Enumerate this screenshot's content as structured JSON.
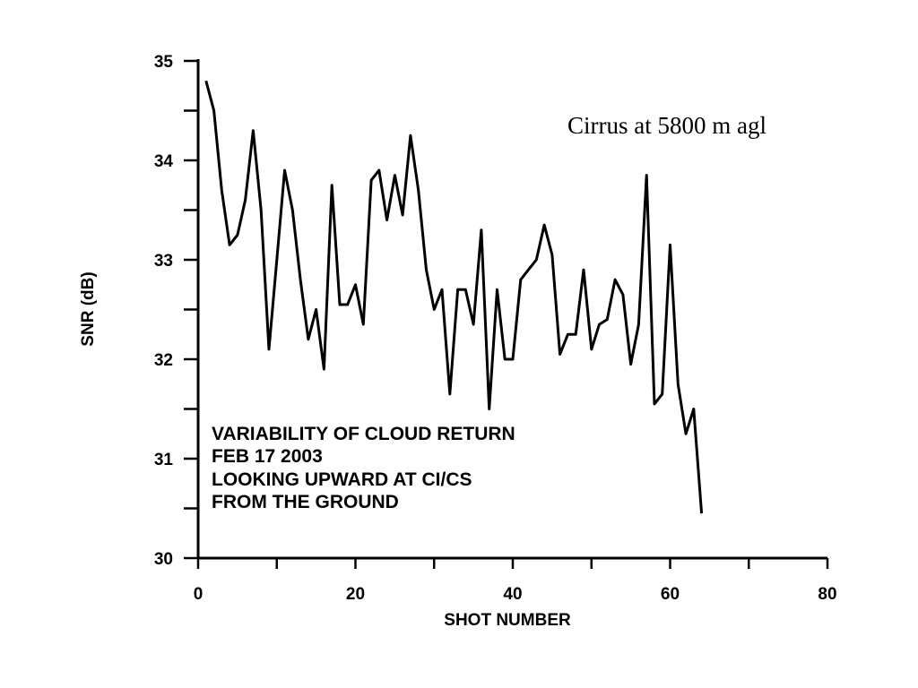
{
  "chart_data": {
    "type": "line",
    "title": "",
    "xlabel": "SHOT NUMBER",
    "ylabel": "SNR (dB)",
    "xlim": [
      0,
      80
    ],
    "ylim": [
      30,
      35
    ],
    "x_ticks": [
      "0",
      "20",
      "40",
      "60",
      "80"
    ],
    "y_ticks": [
      "30",
      "31",
      "32",
      "33",
      "34",
      "35"
    ],
    "grid": false,
    "legend": "none",
    "line_color": "#000000",
    "note": "Cirrus at 5800 m agl",
    "annotation_lines": [
      "VARIABILITY OF CLOUD RETURN",
      "FEB 17 2003",
      "LOOKING UPWARD AT CI/CS",
      "FROM THE GROUND"
    ],
    "series": [
      {
        "x": [
          1,
          2,
          3,
          4,
          5,
          6,
          7,
          8,
          9,
          10,
          11,
          12,
          13,
          14,
          15,
          16,
          17,
          18,
          19,
          20,
          21,
          22,
          23,
          24,
          25,
          26,
          27,
          28,
          29,
          30,
          31,
          32,
          33,
          34,
          35,
          36,
          37,
          38,
          39,
          40,
          41,
          42,
          43,
          44,
          45,
          46,
          47,
          48,
          49,
          50,
          51,
          52,
          53,
          54,
          55,
          56,
          57,
          58,
          59,
          60,
          61,
          62,
          63,
          64
        ],
        "values": [
          34.8,
          34.5,
          33.7,
          33.15,
          33.25,
          33.6,
          34.3,
          33.5,
          32.1,
          33.0,
          33.9,
          33.5,
          32.8,
          32.2,
          32.5,
          31.9,
          33.75,
          32.55,
          32.55,
          32.75,
          32.35,
          33.8,
          33.9,
          33.4,
          33.85,
          33.45,
          34.25,
          33.7,
          32.9,
          32.5,
          32.7,
          31.65,
          32.7,
          32.7,
          32.35,
          33.3,
          31.5,
          32.7,
          32.0,
          32.0,
          32.8,
          32.9,
          33.0,
          33.35,
          33.05,
          32.05,
          32.25,
          32.25,
          32.9,
          32.1,
          32.35,
          32.4,
          32.8,
          32.65,
          31.95,
          32.35,
          33.85,
          31.55,
          31.65,
          33.15,
          31.75,
          31.25,
          31.5,
          30.45
        ]
      }
    ]
  }
}
